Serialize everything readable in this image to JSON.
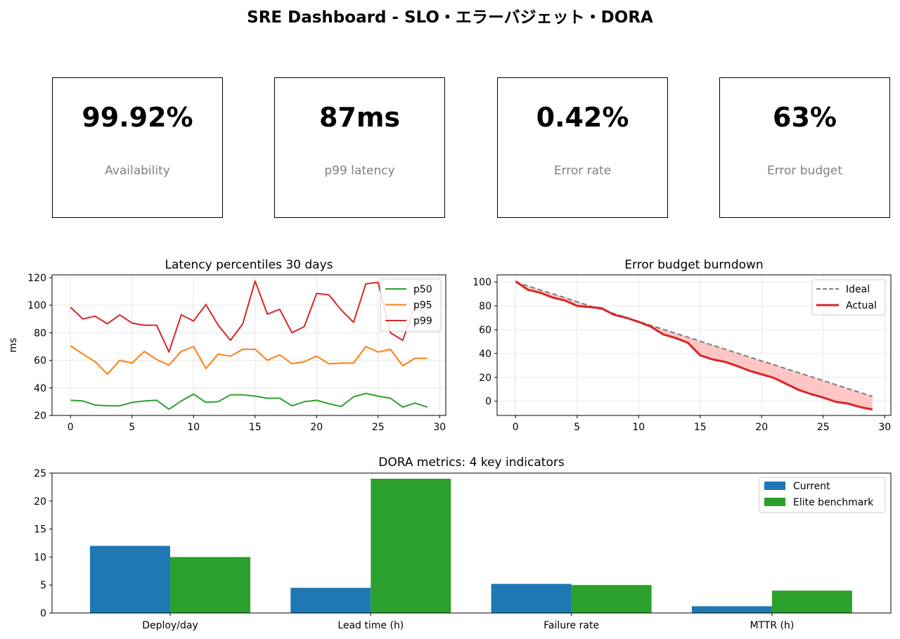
{
  "dashboard": {
    "title": "SRE Dashboard - SLO・エラーバジェット・DORA"
  },
  "kpis": [
    {
      "value": "99.92%",
      "label": "Availability"
    },
    {
      "value": "87ms",
      "label": "p99 latency"
    },
    {
      "value": "0.42%",
      "label": "Error rate"
    },
    {
      "value": "63%",
      "label": "Error budget"
    }
  ],
  "colors": {
    "p50": "#2ca02c",
    "p95": "#ff7f0e",
    "p99": "#d62728",
    "ideal": "#7f7f7f",
    "actual": "#d62728",
    "fill": "#ffc0c0",
    "current": "#1f77b4",
    "elite": "#2ca02c",
    "grid": "#e6e6e6"
  },
  "chart_data": [
    {
      "type": "line",
      "title": "Latency percentiles 30 days",
      "xlabel": "",
      "ylabel": "ms",
      "xlim": [
        -1.5,
        30.5
      ],
      "ylim": [
        20,
        122
      ],
      "xticks": [
        0,
        5,
        10,
        15,
        20,
        25,
        30
      ],
      "yticks": [
        20,
        40,
        60,
        80,
        100,
        120
      ],
      "grid": true,
      "legend": "upper right",
      "x": [
        0,
        1,
        2,
        3,
        4,
        5,
        6,
        7,
        8,
        9,
        10,
        11,
        12,
        13,
        14,
        15,
        16,
        17,
        18,
        19,
        20,
        21,
        22,
        23,
        24,
        25,
        26,
        27,
        28,
        29
      ],
      "series": [
        {
          "name": "p50",
          "values": [
            31,
            30.5,
            27.5,
            27,
            27,
            29.5,
            30.5,
            31,
            24.5,
            30.5,
            35.5,
            29.5,
            30,
            35,
            35,
            34,
            32.5,
            32.5,
            27,
            30,
            31,
            28.5,
            26.5,
            33.5,
            36,
            34,
            32.5,
            26,
            29,
            26
          ]
        },
        {
          "name": "p95",
          "values": [
            70.5,
            64.5,
            59,
            50,
            60,
            58,
            66.5,
            60.5,
            56.5,
            66.5,
            70,
            54,
            64.5,
            63,
            68,
            68,
            60,
            64,
            57.5,
            59,
            63,
            57.5,
            58,
            58,
            70,
            66,
            68,
            56,
            61.5,
            61.5
          ]
        },
        {
          "name": "p99",
          "values": [
            98.5,
            90,
            92,
            86.5,
            93,
            87,
            85.5,
            85.5,
            66,
            93,
            88.5,
            100.5,
            85.5,
            74.5,
            86.5,
            117.5,
            93.5,
            97,
            80,
            84.5,
            108.5,
            107.5,
            96.5,
            87.5,
            115.5,
            116.5,
            80,
            74.5,
            99.5,
            93
          ]
        }
      ]
    },
    {
      "type": "area",
      "title": "Error budget burndown",
      "xlabel": "",
      "ylabel": "",
      "xlim": [
        -1.5,
        30.5
      ],
      "ylim": [
        -12,
        106
      ],
      "xticks": [
        0,
        5,
        10,
        15,
        20,
        25,
        30
      ],
      "yticks": [
        0,
        20,
        40,
        60,
        80,
        100
      ],
      "grid": true,
      "legend": "upper right",
      "x": [
        0,
        1,
        2,
        3,
        4,
        5,
        6,
        7,
        8,
        9,
        10,
        11,
        12,
        13,
        14,
        15,
        16,
        17,
        18,
        19,
        20,
        21,
        22,
        23,
        24,
        25,
        26,
        27,
        28,
        29
      ],
      "series": [
        {
          "name": "Ideal",
          "style": "dashed",
          "values": [
            100,
            96.7,
            93.4,
            90.1,
            86.8,
            83.4,
            80.1,
            76.8,
            73.5,
            70.2,
            66.9,
            63.6,
            60.3,
            57,
            53.7,
            50.3,
            47,
            43.7,
            40.4,
            37.1,
            33.8,
            30.5,
            27.2,
            23.9,
            20.6,
            17.2,
            13.9,
            10.6,
            7.3,
            4
          ]
        },
        {
          "name": "Actual",
          "style": "solid",
          "values": [
            100.5,
            93.5,
            91,
            87,
            84.5,
            80,
            79,
            78,
            72.5,
            70,
            66.5,
            62.5,
            56,
            53,
            49,
            38.5,
            35,
            33,
            29.5,
            25.5,
            22.5,
            19.5,
            14.5,
            9.5,
            6,
            3,
            -0.5,
            -2,
            -5,
            -7
          ]
        }
      ]
    },
    {
      "type": "bar",
      "title": "DORA metrics: 4 key indicators",
      "xlabel": "",
      "ylabel": "",
      "ylim": [
        0,
        25
      ],
      "yticks": [
        0,
        5,
        10,
        15,
        20,
        25
      ],
      "legend": "upper right",
      "categories": [
        "Deploy/day",
        "Lead time (h)",
        "Failure rate",
        "MTTR (h)"
      ],
      "series": [
        {
          "name": "Current",
          "values": [
            12,
            4.5,
            5.2,
            1.2
          ]
        },
        {
          "name": "Elite benchmark",
          "values": [
            10,
            24,
            5,
            4
          ]
        }
      ]
    }
  ]
}
